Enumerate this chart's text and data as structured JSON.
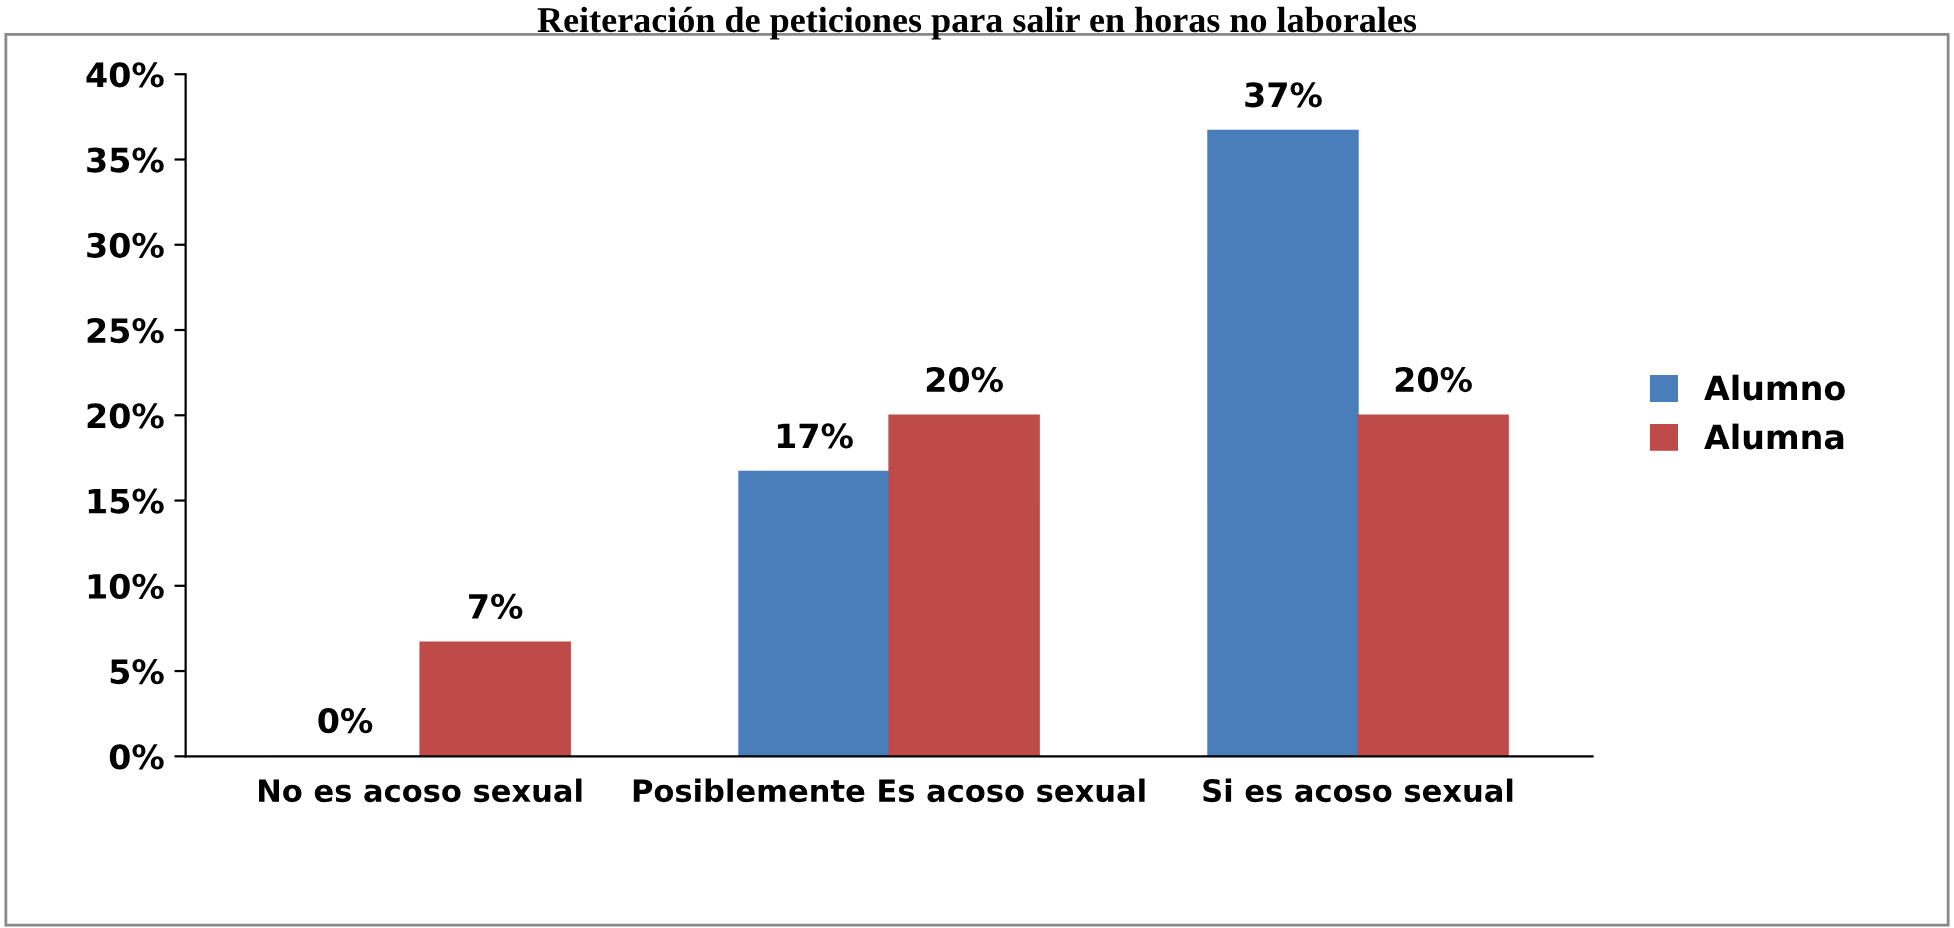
{
  "chart_data": {
    "type": "bar",
    "title": "Reiteración de peticiones para salir en horas no laborales",
    "categories": [
      "No es acoso sexual",
      "Posiblemente Es acoso sexual",
      "Si es acoso sexual"
    ],
    "series": [
      {
        "name": "Alumno",
        "color": "#4a7ebb",
        "values": [
          0,
          16.7,
          36.7
        ],
        "value_labels": [
          "0%",
          "17%",
          "37%"
        ]
      },
      {
        "name": "Alumna",
        "color": "#be4b48",
        "values": [
          6.7,
          20,
          20
        ],
        "value_labels": [
          "7%",
          "20%",
          "20%"
        ]
      }
    ],
    "ylim": [
      0,
      40
    ],
    "yticks": [
      {
        "value": 0,
        "label": "0%"
      },
      {
        "value": 5,
        "label": "5%"
      },
      {
        "value": 10,
        "label": "10%"
      },
      {
        "value": 15,
        "label": "15%"
      },
      {
        "value": 20,
        "label": "20%"
      },
      {
        "value": 25,
        "label": "25%"
      },
      {
        "value": 30,
        "label": "30%"
      },
      {
        "value": 35,
        "label": "35%"
      },
      {
        "value": 40,
        "label": "40%"
      }
    ],
    "grid": false,
    "legend": "right"
  }
}
